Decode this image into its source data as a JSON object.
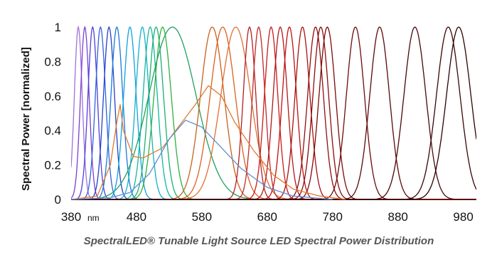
{
  "chart_data": {
    "type": "line",
    "caption": "SpectralLED® Tunable Light Source LED Spectral Power Distribution",
    "ylabel": "Spectral Power [normalized]",
    "xlabel": "",
    "x_unit_label": "nm",
    "xlim": [
      380,
      1000
    ],
    "ylim": [
      0,
      1
    ],
    "x_ticks": [
      "380",
      "480",
      "580",
      "680",
      "780",
      "880",
      "980"
    ],
    "y_ticks": [
      "0",
      "0.2",
      "0.4",
      "0.6",
      "0.8",
      "1"
    ],
    "grid": false,
    "series": [
      {
        "color": "#a070d8",
        "peak": 391,
        "width": 10
      },
      {
        "color": "#7a3fd0",
        "peak": 401,
        "width": 11
      },
      {
        "color": "#4b3fd8",
        "peak": 413,
        "width": 12
      },
      {
        "color": "#3060e0",
        "peak": 425,
        "width": 13
      },
      {
        "color": "#2540c8",
        "peak": 438,
        "width": 14
      },
      {
        "color": "#1a78d8",
        "peak": 450,
        "width": 15
      },
      {
        "color": "#10a0e0",
        "peak": 470,
        "width": 16
      },
      {
        "color": "#12b0c8",
        "peak": 489,
        "width": 17
      },
      {
        "color": "#10b8a0",
        "peak": 501,
        "width": 18
      },
      {
        "color": "#18b070",
        "peak": 510,
        "width": 19
      },
      {
        "color": "#30b040",
        "peak": 520,
        "width": 22
      },
      {
        "color": "#20a060",
        "peak": 535,
        "width": 60
      },
      {
        "color": "#c8601e",
        "peak": 596,
        "width": 30
      },
      {
        "color": "#d96020",
        "peak": 612,
        "width": 32
      },
      {
        "color": "#e07030",
        "peak": 632,
        "width": 38
      },
      {
        "color": "#b22020",
        "peak": 653,
        "width": 16
      },
      {
        "color": "#c02828",
        "peak": 667,
        "width": 16
      },
      {
        "color": "#cc1818",
        "peak": 686,
        "width": 17
      },
      {
        "color": "#b01818",
        "peak": 700,
        "width": 18
      },
      {
        "color": "#c01010",
        "peak": 714,
        "width": 18
      },
      {
        "color": "#a81010",
        "peak": 734,
        "width": 19
      },
      {
        "color": "#8e0e0e",
        "peak": 754,
        "width": 20
      },
      {
        "color": "#8a0c0c",
        "peak": 762,
        "width": 20
      },
      {
        "color": "#7a0a0a",
        "peak": 772,
        "width": 21
      },
      {
        "color": "#6e0a0a",
        "peak": 815,
        "width": 23
      },
      {
        "color": "#5a0808",
        "peak": 852,
        "width": 25
      },
      {
        "color": "#4a0606",
        "peak": 906,
        "width": 28
      },
      {
        "color": "#3a0404",
        "peak": 957,
        "width": 30
      },
      {
        "color": "#2a0202",
        "peak": 973,
        "width": 31
      }
    ],
    "mixed_series": [
      {
        "color": "#e07a30",
        "x": [
          380,
          420,
          440,
          450,
          455,
          460,
          475,
          490,
          520,
          550,
          570,
          590,
          610,
          630,
          660,
          690,
          720,
          760,
          800
        ],
        "y": [
          0,
          0.02,
          0.2,
          0.45,
          0.55,
          0.4,
          0.25,
          0.24,
          0.3,
          0.45,
          0.55,
          0.66,
          0.6,
          0.45,
          0.28,
          0.14,
          0.06,
          0.02,
          0
        ]
      },
      {
        "color": "#5c8fd6",
        "x": [
          380,
          440,
          470,
          500,
          530,
          555,
          580,
          610,
          640,
          680,
          720,
          780
        ],
        "y": [
          0,
          0.01,
          0.04,
          0.15,
          0.35,
          0.46,
          0.42,
          0.3,
          0.18,
          0.07,
          0.02,
          0
        ]
      }
    ]
  }
}
